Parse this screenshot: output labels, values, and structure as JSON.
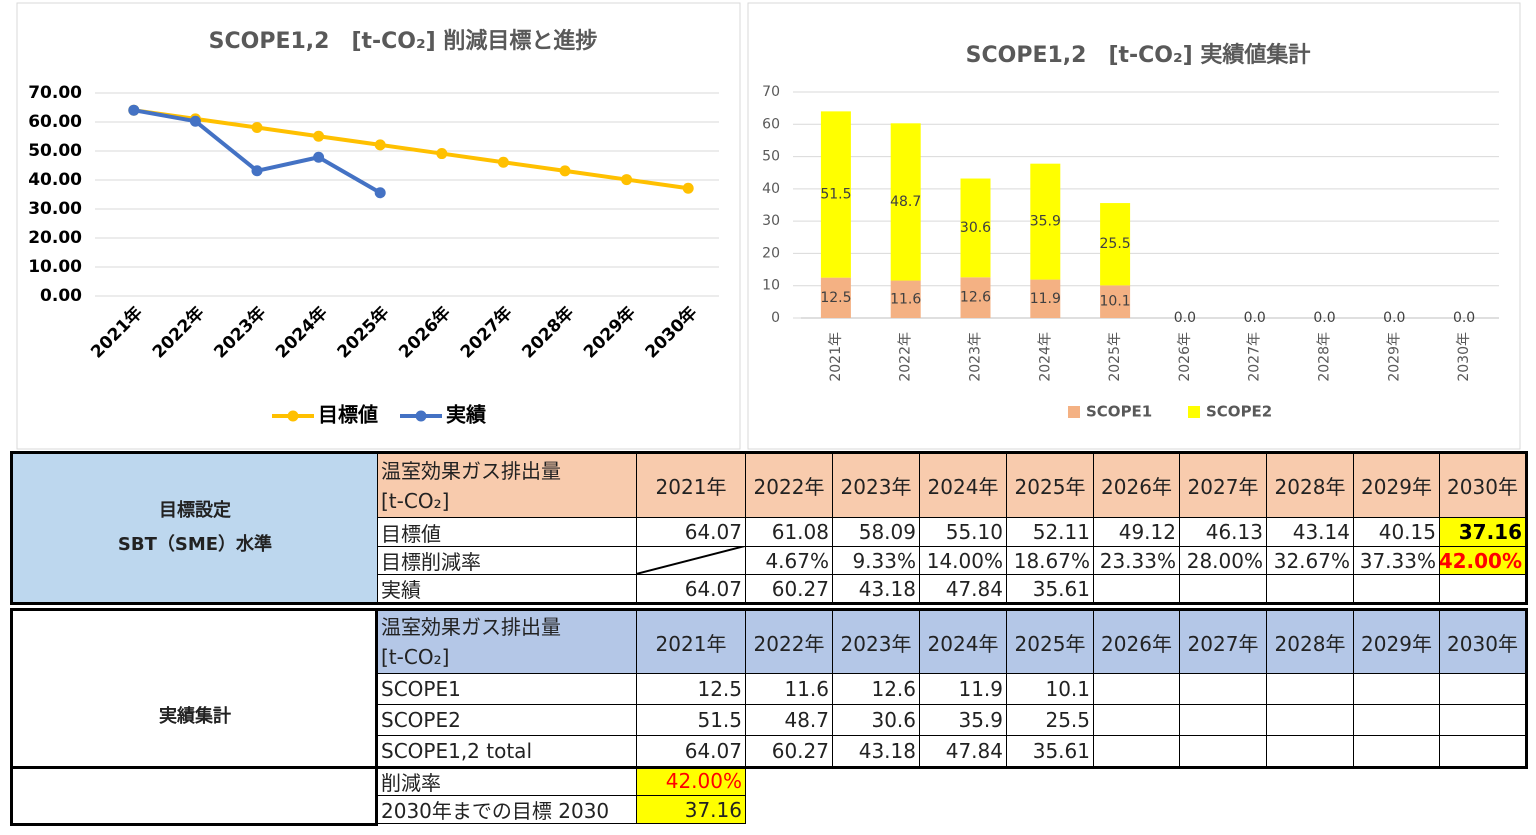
{
  "chart_data": [
    {
      "type": "line",
      "title": "SCOPE1,2　[t-CO₂] 削減目標と進捗",
      "categories": [
        "2021年",
        "2022年",
        "2023年",
        "2024年",
        "2025年",
        "2026年",
        "2027年",
        "2028年",
        "2029年",
        "2030年"
      ],
      "series": [
        {
          "name": "目標値",
          "color": "#ffc000",
          "values": [
            64.07,
            61.08,
            58.09,
            55.1,
            52.11,
            49.12,
            46.13,
            43.14,
            40.15,
            37.16
          ]
        },
        {
          "name": "実績",
          "color": "#4472c4",
          "values": [
            64.07,
            60.27,
            43.18,
            47.84,
            35.61,
            null,
            null,
            null,
            null,
            null
          ]
        }
      ],
      "ylim": [
        0,
        70
      ],
      "yticks": [
        {
          "value": 0,
          "label": "0.00"
        },
        {
          "value": 10,
          "label": "10.00"
        },
        {
          "value": 20,
          "label": "20.00"
        },
        {
          "value": 30,
          "label": "30.00"
        },
        {
          "value": 40,
          "label": "40.00"
        },
        {
          "value": 50,
          "label": "50.00"
        },
        {
          "value": 60,
          "label": "60.00"
        },
        {
          "value": 70,
          "label": "70.00"
        }
      ],
      "grid": true,
      "legend": "bottom"
    },
    {
      "type": "stacked_bar",
      "title": "SCOPE1,2　[t-CO₂] 実績値集計",
      "categories": [
        "2021年",
        "2022年",
        "2023年",
        "2024年",
        "2025年",
        "2026年",
        "2027年",
        "2028年",
        "2029年",
        "2030年"
      ],
      "series": [
        {
          "name": "SCOPE1",
          "color": "#f4b183",
          "values": [
            12.5,
            11.6,
            12.6,
            11.9,
            10.1,
            0,
            0,
            0,
            0,
            0
          ],
          "value_labels": [
            "12.5",
            "11.6",
            "12.6",
            "11.9",
            "10.1",
            "0.0",
            "0.0",
            "0.0",
            "0.0",
            "0.0"
          ]
        },
        {
          "name": "SCOPE2",
          "color": "#ffff00",
          "values": [
            51.5,
            48.7,
            30.6,
            35.9,
            25.5,
            null,
            null,
            null,
            null,
            null
          ],
          "value_labels": [
            "51.5",
            "48.7",
            "30.6",
            "35.9",
            "25.5",
            null,
            null,
            null,
            null,
            null
          ]
        }
      ],
      "ylim": [
        0,
        70
      ],
      "yticks": [
        0,
        10,
        20,
        30,
        40,
        50,
        60,
        70
      ],
      "grid": true,
      "legend": "bottom"
    }
  ],
  "tables": [
    {
      "title": [
        "目標設定",
        "SBT（SME）水準"
      ],
      "header": {
        "label": [
          "温室効果ガス排出量",
          "[t-CO₂]"
        ],
        "years": [
          "2021年",
          "2022年",
          "2023年",
          "2024年",
          "2025年",
          "2026年",
          "2027年",
          "2028年",
          "2029年",
          "2030年"
        ]
      },
      "rows": [
        {
          "label": "目標値",
          "cells": [
            "64.07",
            "61.08",
            "58.09",
            "55.10",
            "52.11",
            "49.12",
            "46.13",
            "43.14",
            "40.15",
            "37.16"
          ]
        },
        {
          "label": "目標削減率",
          "cells": [
            null,
            "4.67%",
            "9.33%",
            "14.00%",
            "18.67%",
            "23.33%",
            "28.00%",
            "32.67%",
            "37.33%",
            "42.00%"
          ]
        },
        {
          "label": "実績",
          "cells": [
            "64.07",
            "60.27",
            "43.18",
            "47.84",
            "35.61",
            null,
            null,
            null,
            null,
            null
          ]
        }
      ]
    },
    {
      "title": [
        "実績集計"
      ],
      "header": {
        "label": [
          "温室効果ガス排出量",
          "[t-CO₂]"
        ],
        "years": [
          "2021年",
          "2022年",
          "2023年",
          "2024年",
          "2025年",
          "2026年",
          "2027年",
          "2028年",
          "2029年",
          "2030年"
        ]
      },
      "rows": [
        {
          "label": "SCOPE1",
          "cells": [
            "12.5",
            "11.6",
            "12.6",
            "11.9",
            "10.1",
            null,
            null,
            null,
            null,
            null
          ]
        },
        {
          "label": "SCOPE2",
          "cells": [
            "51.5",
            "48.7",
            "30.6",
            "35.9",
            "25.5",
            null,
            null,
            null,
            null,
            null
          ]
        },
        {
          "label": "SCOPE1,2 total",
          "cells": [
            "64.07",
            "60.27",
            "43.18",
            "47.84",
            "35.61",
            null,
            null,
            null,
            null,
            null
          ]
        }
      ],
      "footer_rows": [
        {
          "label": "削減率",
          "value": "42.00%"
        },
        {
          "label": "2030年までの目標 2030",
          "value": "37.16"
        }
      ]
    }
  ]
}
